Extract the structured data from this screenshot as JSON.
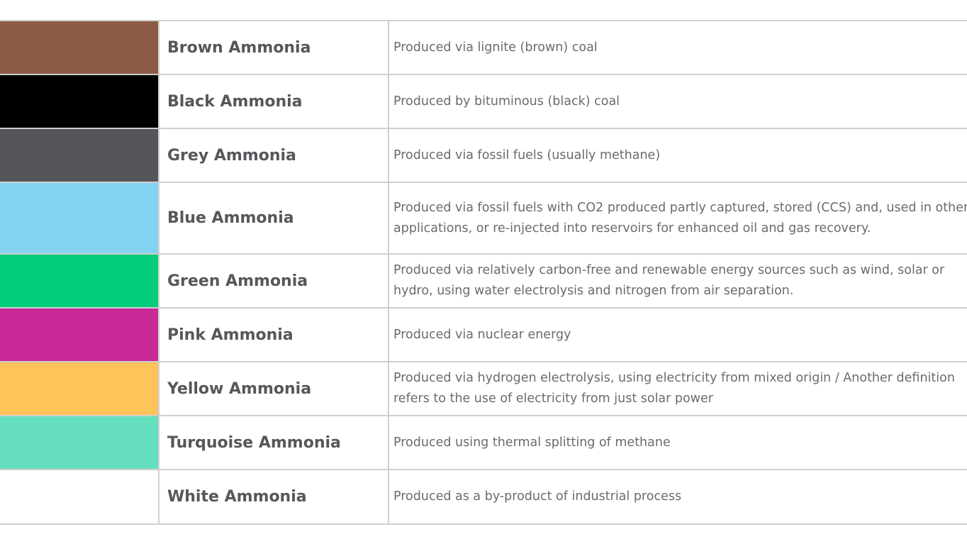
{
  "rows": [
    {
      "name": "Brown Ammonia",
      "color": "#8e5c45",
      "description": "Produced via lignite (brown) coal"
    },
    {
      "name": "Black Ammonia",
      "color": "#000000",
      "description": "Produced by bituminous (black) coal"
    },
    {
      "name": "Grey Ammonia",
      "color": "#545659",
      "description": "Produced via fossil fuels (usually methane)"
    },
    {
      "name": "Blue Ammonia",
      "color": "#82d3f2",
      "description": "Produced via fossil fuels with CO2 produced partly captured, stored (CCS) and, used in other applications, or re-injected into reservoirs for enhanced oil and gas recovery."
    },
    {
      "name": "Green Ammonia",
      "color": "#00cc7a",
      "description": "Produced via relatively carbon-free and renewable energy sources such as wind, solar or hydro, using water electrolysis and nitrogen from air separation."
    },
    {
      "name": "Pink Ammonia",
      "color": "#c92a98",
      "description": "Produced via nuclear energy"
    },
    {
      "name": "Yellow Ammonia",
      "color": "#fdc45a",
      "description": "Produced via hydrogen electrolysis, using electricity from mixed origin / Another definition refers to the use of electricity from just solar power"
    },
    {
      "name": "Turquoise Ammonia",
      "color": "#66dfbf",
      "description": "Produced using thermal splitting of methane"
    },
    {
      "name": "White Ammonia",
      "color": "#ffffff",
      "description": "Produced as a by-product of industrial process"
    }
  ]
}
